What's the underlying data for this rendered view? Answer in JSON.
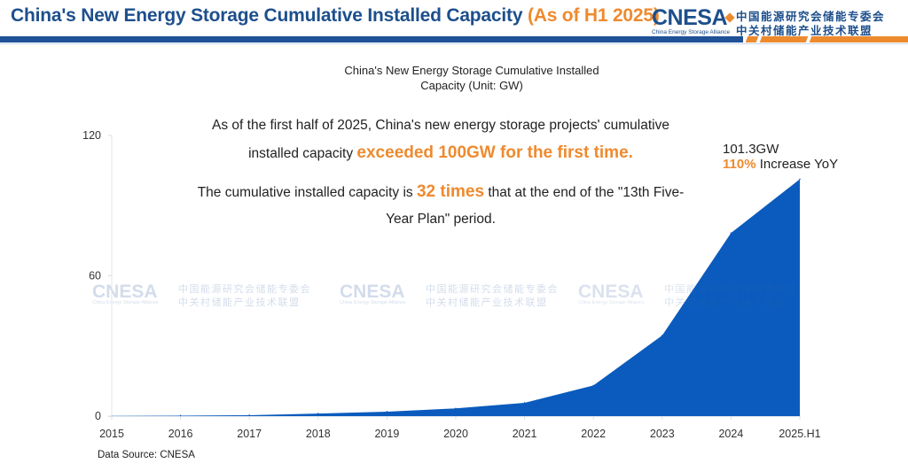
{
  "header": {
    "title": "China's New Energy Storage Cumulative Installed Capacity",
    "title_accent": "(As of H1 2025)",
    "logo_text": "CNESA",
    "logo_subtitle": "China Energy Storage Alliance",
    "logo_cn_line1": "中国能源研究会储能专委会",
    "logo_cn_line2": "中关村储能产业技术联盟"
  },
  "annotations": {
    "line1": "As of the first half of 2025, China's new energy storage projects' cumulative",
    "line2_prefix": "installed capacity ",
    "line2_highlight": "exceeded 100GW for the first time.",
    "line3_prefix": "The cumulative installed capacity is ",
    "line3_highlight": "32 times",
    "line3_suffix": " that at the end of the \"13th Five-",
    "line4": "Year Plan\" period.",
    "callout_value": "101.3GW",
    "callout_yoy_highlight": "110%",
    "callout_yoy_text": " Increase YoY"
  },
  "watermark": {
    "text": "CNESA",
    "subtitle": "China Energy Storage Alliance",
    "cn_line1": "中国能源研究会储能专委会",
    "cn_line2": "中关村储能产业技术联盟"
  },
  "source": "Data Source: CNESA",
  "colors": {
    "brand_blue": "#1d4f8c",
    "accent_orange": "#ee8a2e",
    "area_fill": "#0a5bbd"
  },
  "chart_data": {
    "type": "area",
    "title": "China's New Energy Storage Cumulative Installed Capacity (Unit: GW)",
    "title_lines": [
      "China's New Energy Storage Cumulative Installed",
      "Capacity (Unit: GW)"
    ],
    "xlabel": "",
    "ylabel": "GW",
    "categories": [
      "2015",
      "2016",
      "2017",
      "2018",
      "2019",
      "2020",
      "2021",
      "2022",
      "2023",
      "2024",
      "2025.H1"
    ],
    "series": [
      {
        "name": "Cumulative Installed Capacity (GW)",
        "values": [
          0.1,
          0.2,
          0.4,
          1.1,
          1.9,
          3.3,
          5.7,
          13.1,
          34.5,
          78.3,
          101.3
        ]
      }
    ],
    "ylim": [
      0,
      120
    ],
    "yticks": [
      0,
      60,
      120
    ],
    "grid": false,
    "legend": "none"
  }
}
